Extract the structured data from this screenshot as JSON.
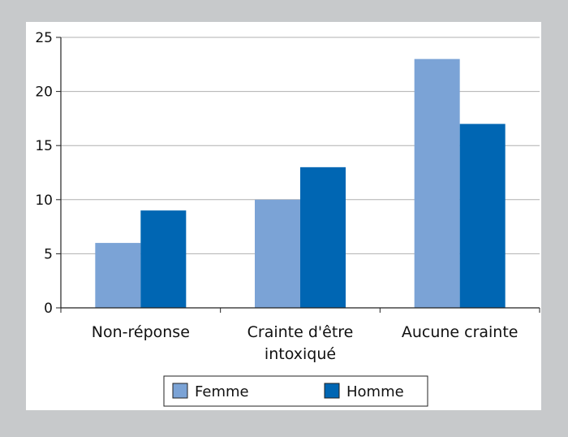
{
  "chart_data": {
    "type": "bar",
    "categories": [
      [
        "Non-réponse"
      ],
      [
        "Crainte d'être",
        "intoxiqué"
      ],
      [
        "Aucune crainte"
      ]
    ],
    "series": [
      {
        "name": "Femme",
        "values": [
          6,
          10,
          23
        ],
        "color": "#7ba3d6"
      },
      {
        "name": "Homme",
        "values": [
          9,
          13,
          17
        ],
        "color": "#0066b3"
      }
    ],
    "ylim": [
      0,
      25
    ],
    "yticks": [
      0,
      5,
      10,
      15,
      20,
      25
    ],
    "grid": true,
    "legend_position": "bottom",
    "title": "",
    "xlabel": "",
    "ylabel": ""
  }
}
